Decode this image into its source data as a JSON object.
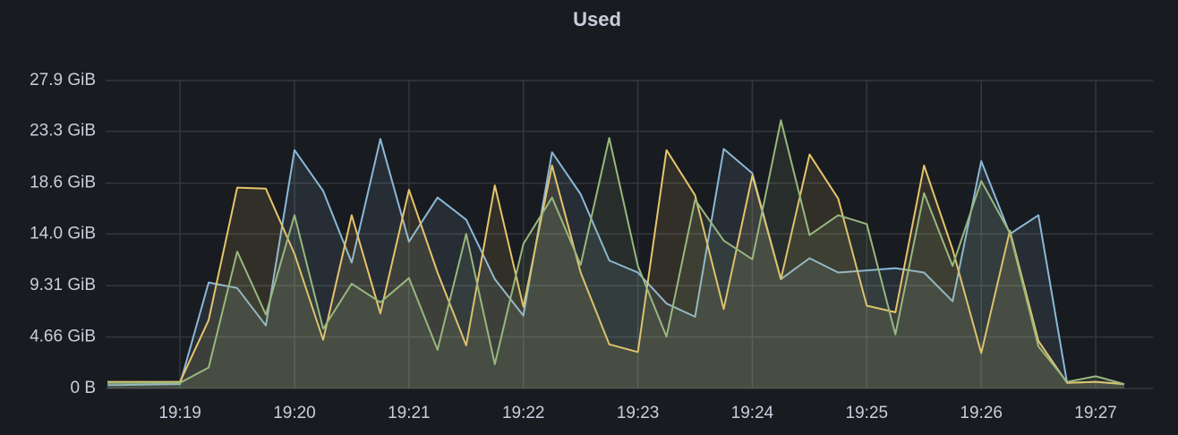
{
  "chart_data": {
    "type": "line",
    "title": "Used",
    "x": [
      "19:18:22",
      "19:19:00",
      "19:19:15",
      "19:19:30",
      "19:19:45",
      "19:20:00",
      "19:20:15",
      "19:20:30",
      "19:20:45",
      "19:21:00",
      "19:21:15",
      "19:21:30",
      "19:21:45",
      "19:22:00",
      "19:22:15",
      "19:22:30",
      "19:22:45",
      "19:23:00",
      "19:23:15",
      "19:23:30",
      "19:23:45",
      "19:24:00",
      "19:24:15",
      "19:24:30",
      "19:24:45",
      "19:25:00",
      "19:25:15",
      "19:25:30",
      "19:25:45",
      "19:26:00",
      "19:26:15",
      "19:26:30",
      "19:26:45",
      "19:27:00",
      "19:27:15"
    ],
    "series": [
      {
        "color": "#8ab8d8",
        "values": [
          0.3,
          0.4,
          9.6,
          9.1,
          5.7,
          21.6,
          17.9,
          11.4,
          22.6,
          13.3,
          17.3,
          15.3,
          9.9,
          6.6,
          21.4,
          17.6,
          11.6,
          10.5,
          7.7,
          6.5,
          21.7,
          19.5,
          9.9,
          11.8,
          10.5,
          10.7,
          10.9,
          10.5,
          7.9,
          20.6,
          14.0,
          15.7,
          0.5,
          0.6,
          0.4
        ]
      },
      {
        "color": "#e6c46c",
        "values": [
          0.6,
          0.6,
          6.2,
          18.2,
          18.1,
          12.2,
          4.4,
          15.7,
          6.8,
          18.0,
          10.5,
          3.9,
          18.4,
          7.4,
          20.2,
          10.5,
          4.0,
          3.3,
          21.6,
          17.5,
          7.2,
          19.3,
          9.9,
          21.2,
          17.2,
          7.5,
          6.9,
          20.2,
          12.6,
          3.2,
          14.3,
          4.3,
          0.5,
          0.6,
          0.4
        ]
      },
      {
        "color": "#98b77e",
        "values": [
          0.5,
          0.5,
          1.9,
          12.4,
          6.7,
          15.7,
          5.4,
          9.5,
          7.8,
          10.0,
          3.5,
          14.0,
          2.2,
          13.1,
          17.3,
          11.2,
          22.7,
          11.1,
          4.7,
          17.1,
          13.4,
          11.7,
          24.3,
          13.9,
          15.7,
          14.9,
          4.9,
          17.7,
          11.1,
          18.8,
          14.1,
          3.8,
          0.6,
          1.1,
          0.4
        ]
      }
    ],
    "xlim": [
      "19:18:21",
      "19:27:30"
    ],
    "xticks": [
      "19:19",
      "19:20",
      "19:21",
      "19:22",
      "19:23",
      "19:24",
      "19:25",
      "19:26",
      "19:27"
    ],
    "ylim": [
      0,
      27.9
    ],
    "yticks": [
      {
        "value": 0,
        "label": "0 B"
      },
      {
        "value": 4.66,
        "label": "4.66 GiB"
      },
      {
        "value": 9.31,
        "label": "9.31 GiB"
      },
      {
        "value": 14.0,
        "label": "14.0 GiB"
      },
      {
        "value": 18.6,
        "label": "18.6 GiB"
      },
      {
        "value": 23.3,
        "label": "23.3 GiB"
      },
      {
        "value": 27.9,
        "label": "27.9 GiB"
      }
    ],
    "grid": true,
    "fill_opacity": 0.12
  }
}
